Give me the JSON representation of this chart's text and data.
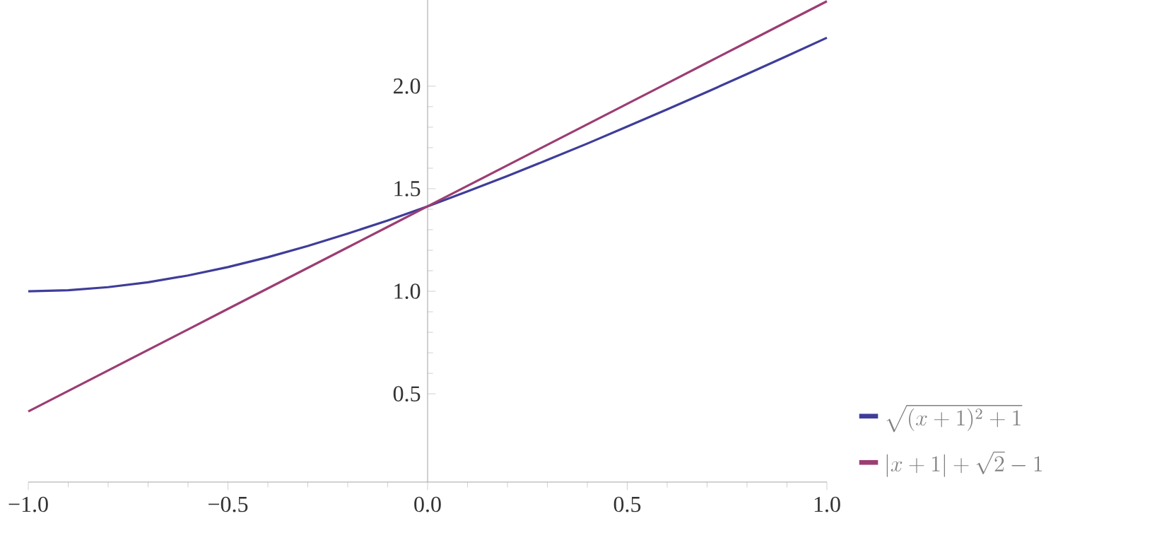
{
  "chart_data": {
    "type": "line",
    "x": [
      -1.0,
      -0.9,
      -0.8,
      -0.7,
      -0.6,
      -0.5,
      -0.4,
      -0.3,
      -0.2,
      -0.1,
      0.0,
      0.1,
      0.2,
      0.3,
      0.4,
      0.5,
      0.6,
      0.7,
      0.8,
      0.9,
      1.0
    ],
    "series": [
      {
        "name": "\\sqrt{(x+1)^{2}+1}",
        "color": "#3f3d99",
        "values": [
          1.0,
          1.005,
          1.02,
          1.044,
          1.077,
          1.118,
          1.166,
          1.221,
          1.281,
          1.345,
          1.414,
          1.487,
          1.562,
          1.64,
          1.72,
          1.803,
          1.887,
          1.972,
          2.059,
          2.147,
          2.236
        ]
      },
      {
        "name": "\\lvert x+1\\rvert+\\sqrt{2}-1",
        "color": "#9c3d73",
        "values": [
          0.414,
          0.514,
          0.614,
          0.714,
          0.814,
          0.914,
          1.014,
          1.114,
          1.214,
          1.314,
          1.414,
          1.514,
          1.614,
          1.714,
          1.814,
          1.914,
          2.014,
          2.114,
          2.214,
          2.314,
          2.414
        ]
      }
    ],
    "xlim": [
      -1.0,
      1.0
    ],
    "ylim": [
      0.07,
      2.42
    ],
    "xticks": [
      {
        "value": -1.0,
        "label": "−1.0"
      },
      {
        "value": -0.5,
        "label": "−0.5"
      },
      {
        "value": 0.0,
        "label": "0.0"
      },
      {
        "value": 0.5,
        "label": "0.5"
      },
      {
        "value": 1.0,
        "label": "1.0"
      }
    ],
    "yticks": [
      0.5,
      {
        "value": 1.0,
        "label": "1.0"
      },
      1.5,
      {
        "value": 2.0,
        "label": "2.0"
      }
    ],
    "legend": "bottom right"
  }
}
